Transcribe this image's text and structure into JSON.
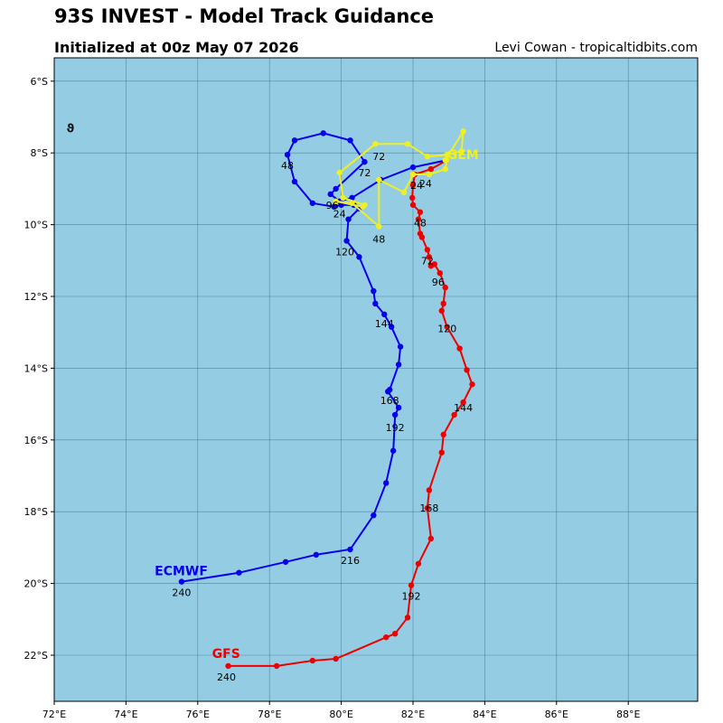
{
  "header": {
    "title": "93S INVEST - Model Track Guidance",
    "subtitle": "Initialized at 00z May 07 2026",
    "credit": "Levi Cowan - tropicaltidbits.com"
  },
  "colors": {
    "ocean": "#94cde3",
    "grid": "#3a6a80",
    "gfs": "#ee0000",
    "ecmwf": "#0000ee",
    "gem": "#f0f020"
  },
  "chart_data": {
    "type": "line",
    "projection": "lon-lat",
    "xlim": [
      72.0,
      100.0
    ],
    "ylim": [
      -23.3,
      -5.35
    ],
    "x_ticks": [
      72,
      74,
      76,
      78,
      80,
      82,
      84,
      86,
      88
    ],
    "x_tick_labels": [
      "72°E",
      "74°E",
      "76°E",
      "78°E",
      "80°E",
      "82°E",
      "84°E",
      "86°E",
      "88°E"
    ],
    "y_ticks": [
      -6,
      -8,
      -10,
      -12,
      -14,
      -16,
      -18,
      -20,
      -22
    ],
    "y_tick_labels": [
      "6°S",
      "8°S",
      "10°S",
      "12°S",
      "14°S",
      "16°S",
      "18°S",
      "20°S",
      "22°S"
    ],
    "grid": true,
    "storm_symbol": {
      "lon": 72.45,
      "lat": -7.3,
      "glyph": "ϑ"
    },
    "series": [
      {
        "name": "GFS",
        "color": "#ee0000",
        "label": {
          "text": "GFS",
          "lon": 76.4,
          "lat": -21.95
        },
        "points": [
          [
            82.95,
            -8.2
          ],
          [
            82.5,
            -8.45
          ],
          [
            82.05,
            -8.6
          ],
          [
            82.0,
            -8.9
          ],
          [
            81.98,
            -9.25
          ],
          [
            82.0,
            -9.45
          ],
          [
            82.2,
            -9.65
          ],
          [
            82.15,
            -9.85
          ],
          [
            82.2,
            -10.25
          ],
          [
            82.25,
            -10.35
          ],
          [
            82.4,
            -10.7
          ],
          [
            82.45,
            -10.9
          ],
          [
            82.5,
            -11.15
          ],
          [
            82.6,
            -11.1
          ],
          [
            82.75,
            -11.35
          ],
          [
            82.9,
            -11.75
          ],
          [
            82.85,
            -12.2
          ],
          [
            82.8,
            -12.4
          ],
          [
            82.95,
            -12.85
          ],
          [
            83.3,
            -13.45
          ],
          [
            83.5,
            -14.05
          ],
          [
            83.65,
            -14.45
          ],
          [
            83.4,
            -14.95
          ],
          [
            83.15,
            -15.3
          ],
          [
            82.85,
            -15.85
          ],
          [
            82.8,
            -16.35
          ],
          [
            82.45,
            -17.4
          ],
          [
            82.4,
            -17.9
          ],
          [
            82.5,
            -18.75
          ],
          [
            82.15,
            -19.45
          ],
          [
            81.95,
            -20.05
          ],
          [
            81.85,
            -20.95
          ],
          [
            81.5,
            -21.4
          ],
          [
            81.25,
            -21.5
          ],
          [
            79.85,
            -22.1
          ],
          [
            79.2,
            -22.15
          ],
          [
            78.2,
            -22.3
          ],
          [
            76.85,
            -22.3
          ]
        ],
        "hour_labels": [
          {
            "text": "24",
            "lon": 82.1,
            "lat": -8.9
          },
          {
            "text": "48",
            "lon": 82.2,
            "lat": -9.95
          },
          {
            "text": "72",
            "lon": 82.4,
            "lat": -11.0
          },
          {
            "text": "96",
            "lon": 82.7,
            "lat": -11.6
          },
          {
            "text": "120",
            "lon": 82.95,
            "lat": -12.9
          },
          {
            "text": "144",
            "lon": 83.4,
            "lat": -15.1
          },
          {
            "text": "168",
            "lon": 82.45,
            "lat": -17.9
          },
          {
            "text": "192",
            "lon": 81.95,
            "lat": -20.35
          },
          {
            "text": "240",
            "lon": 76.8,
            "lat": -22.6
          }
        ]
      },
      {
        "name": "ECMWF",
        "color": "#0000ee",
        "label": {
          "text": "ECMWF",
          "lon": 74.8,
          "lat": -19.65
        },
        "points": [
          [
            82.95,
            -8.2
          ],
          [
            82.0,
            -8.4
          ],
          [
            81.1,
            -8.75
          ],
          [
            80.3,
            -9.25
          ],
          [
            79.95,
            -9.35
          ],
          [
            79.7,
            -9.15
          ],
          [
            79.85,
            -9.0
          ],
          [
            80.65,
            -8.25
          ],
          [
            80.25,
            -7.65
          ],
          [
            79.5,
            -7.45
          ],
          [
            78.7,
            -7.65
          ],
          [
            78.5,
            -8.05
          ],
          [
            78.7,
            -8.8
          ],
          [
            79.2,
            -9.4
          ],
          [
            79.8,
            -9.5
          ],
          [
            80.0,
            -9.45
          ],
          [
            80.35,
            -9.45
          ],
          [
            80.5,
            -9.55
          ],
          [
            80.2,
            -9.85
          ],
          [
            80.15,
            -10.45
          ],
          [
            80.5,
            -10.9
          ],
          [
            80.9,
            -11.85
          ],
          [
            80.95,
            -12.2
          ],
          [
            81.2,
            -12.5
          ],
          [
            81.4,
            -12.85
          ],
          [
            81.65,
            -13.4
          ],
          [
            81.6,
            -13.9
          ],
          [
            81.35,
            -14.6
          ],
          [
            81.3,
            -14.65
          ],
          [
            81.6,
            -15.1
          ],
          [
            81.5,
            -15.3
          ],
          [
            81.45,
            -16.3
          ],
          [
            81.25,
            -17.2
          ],
          [
            80.9,
            -18.1
          ],
          [
            80.25,
            -19.05
          ],
          [
            79.3,
            -19.2
          ],
          [
            78.45,
            -19.4
          ],
          [
            77.15,
            -19.7
          ],
          [
            75.55,
            -19.95
          ]
        ],
        "hour_labels": [
          {
            "text": "24",
            "lon": 79.95,
            "lat": -9.7
          },
          {
            "text": "48",
            "lon": 78.5,
            "lat": -8.35
          },
          {
            "text": "72",
            "lon": 80.65,
            "lat": -8.55
          },
          {
            "text": "96",
            "lon": 79.75,
            "lat": -9.45
          },
          {
            "text": "120",
            "lon": 80.1,
            "lat": -10.75
          },
          {
            "text": "144",
            "lon": 81.2,
            "lat": -12.75
          },
          {
            "text": "168",
            "lon": 81.35,
            "lat": -14.9
          },
          {
            "text": "192",
            "lon": 81.5,
            "lat": -15.65
          },
          {
            "text": "216",
            "lon": 80.25,
            "lat": -19.35
          },
          {
            "text": "240",
            "lon": 75.55,
            "lat": -20.25
          }
        ]
      },
      {
        "name": "GEM",
        "color": "#f0f020",
        "label": {
          "text": "GEM",
          "lon": 82.95,
          "lat": -8.05
        },
        "points": [
          [
            82.95,
            -8.2
          ],
          [
            82.9,
            -8.45
          ],
          [
            82.45,
            -8.6
          ],
          [
            82.0,
            -8.6
          ],
          [
            81.75,
            -9.1
          ],
          [
            81.05,
            -8.75
          ],
          [
            81.05,
            -10.05
          ],
          [
            80.3,
            -9.4
          ],
          [
            79.85,
            -9.35
          ],
          [
            80.6,
            -9.5
          ],
          [
            80.65,
            -9.45
          ],
          [
            80.05,
            -9.25
          ],
          [
            79.95,
            -8.55
          ],
          [
            80.95,
            -7.75
          ],
          [
            81.85,
            -7.75
          ],
          [
            82.4,
            -8.1
          ],
          [
            82.95,
            -8.05
          ],
          [
            83.35,
            -7.95
          ],
          [
            83.4,
            -7.4
          ],
          [
            82.9,
            -8.2
          ]
        ],
        "hour_labels": [
          {
            "text": "24",
            "lon": 82.35,
            "lat": -8.85
          },
          {
            "text": "48",
            "lon": 81.05,
            "lat": -10.4
          },
          {
            "text": "72",
            "lon": 81.05,
            "lat": -8.1
          }
        ]
      }
    ]
  }
}
